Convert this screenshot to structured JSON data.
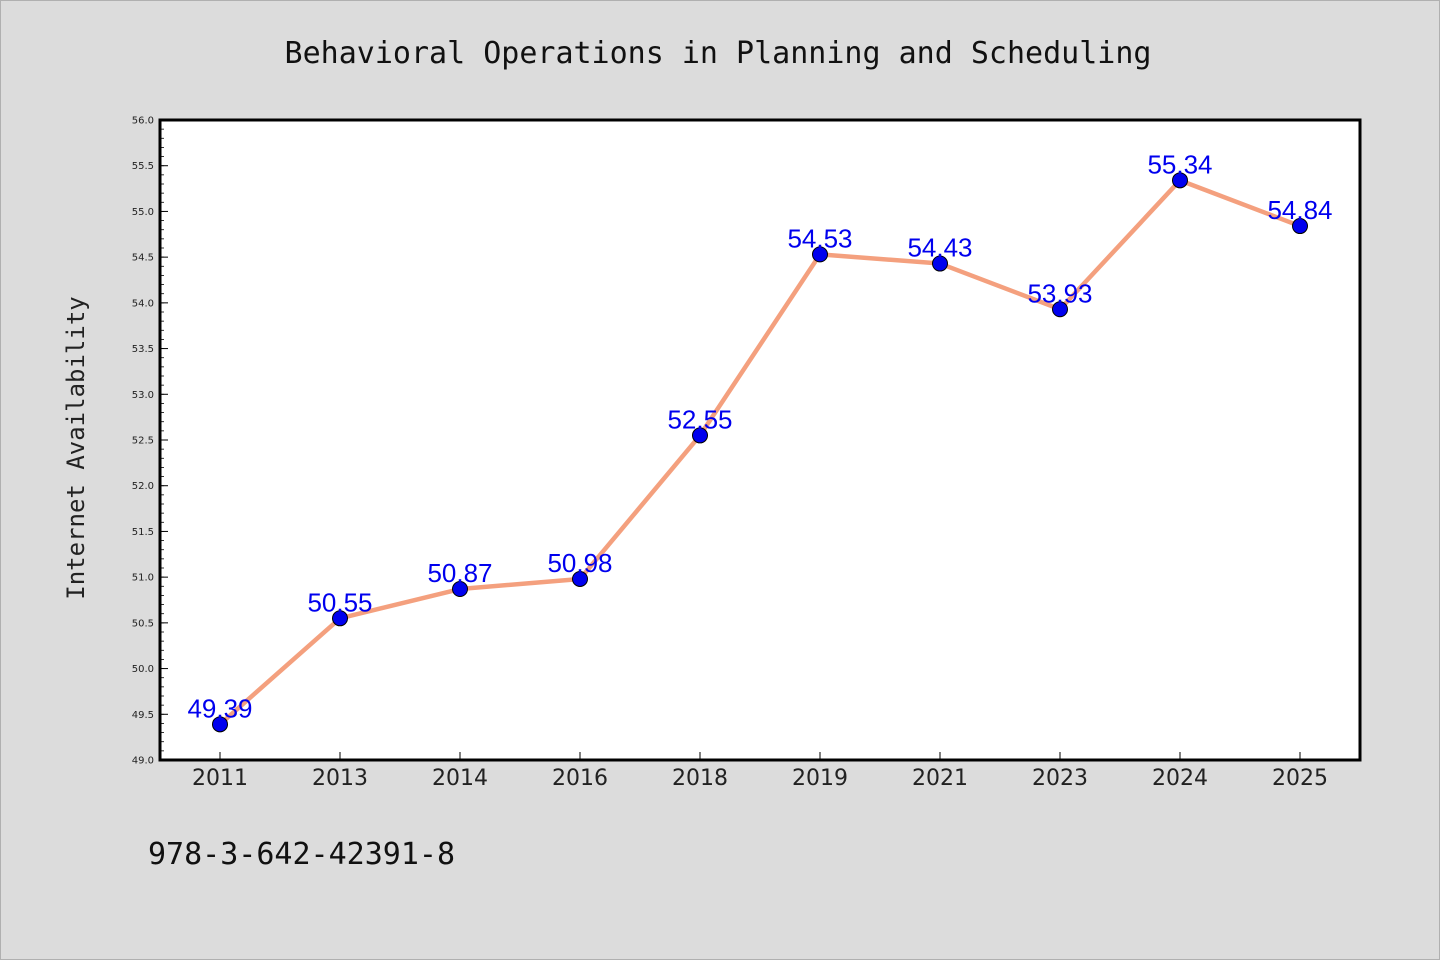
{
  "chart_data": {
    "type": "line",
    "title": "Behavioral Operations in Planning and Scheduling",
    "xlabel": "",
    "ylabel": "Internet Availability",
    "categories": [
      "2011",
      "2013",
      "2014",
      "2016",
      "2018",
      "2019",
      "2021",
      "2023",
      "2024",
      "2025"
    ],
    "series": [
      {
        "values": [
          49.39,
          50.55,
          50.87,
          50.98,
          52.55,
          54.53,
          54.43,
          53.93,
          55.34,
          54.84
        ],
        "labels": [
          "49.39",
          "50.55",
          "50.87",
          "50.98",
          "52.55",
          "54.53",
          "54.43",
          "53.93",
          "55.34",
          "54.84"
        ],
        "line_color": "#f4a07e",
        "marker_color": "#0000ee",
        "label_color": "#0000ee"
      }
    ],
    "ylim": [
      49.0,
      56.0
    ],
    "yticks": [
      "49.0",
      "49.5",
      "50.0",
      "50.5",
      "51.0",
      "51.5",
      "52.0",
      "52.5",
      "53.0",
      "53.5",
      "54.0",
      "54.5",
      "55.0",
      "55.5",
      "56.0"
    ],
    "grid": false,
    "legend": "none"
  },
  "footer": {
    "isbn": "978-3-642-42391-8"
  }
}
